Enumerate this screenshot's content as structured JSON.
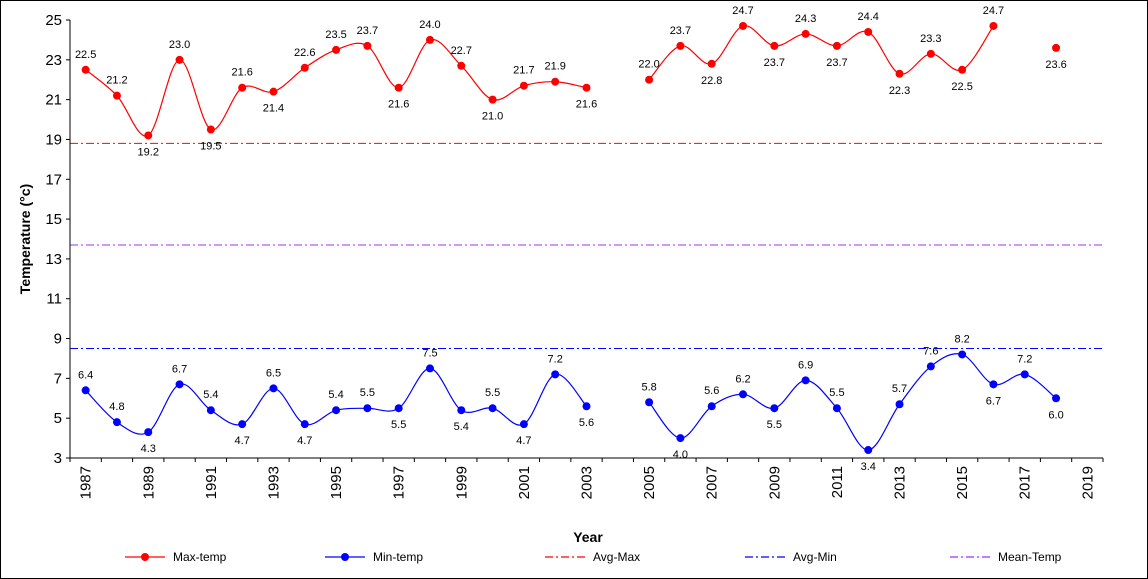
{
  "chart_data": {
    "type": "line",
    "xlabel": "Year",
    "ylabel": "Temperature (°c)",
    "ylim": [
      3,
      25
    ],
    "xlim": [
      1987,
      2020
    ],
    "y_ticks": [
      "3",
      "5",
      "7",
      "9",
      "11",
      "13",
      "15",
      "17",
      "19",
      "21",
      "23",
      "25"
    ],
    "x_ticks": [
      "1987",
      "1989",
      "1991",
      "1993",
      "1995",
      "1997",
      "1999",
      "2001",
      "2003",
      "2005",
      "2007",
      "2009",
      "2011",
      "2013",
      "2015",
      "2017",
      "2019"
    ],
    "grid": false,
    "legend_position": "bottom",
    "series": [
      {
        "name": "Max-temp",
        "color": "#ff0000",
        "marker": "circle",
        "x": [
          1987,
          1988,
          1989,
          1990,
          1991,
          1992,
          1993,
          1994,
          1995,
          1996,
          1997,
          1998,
          1999,
          2000,
          2001,
          2002,
          2003,
          2005,
          2006,
          2007,
          2008,
          2009,
          2010,
          2011,
          2012,
          2013,
          2014,
          2015,
          2016,
          2018
        ],
        "values": [
          22.5,
          21.2,
          19.2,
          23.0,
          19.5,
          21.6,
          21.4,
          22.6,
          23.5,
          23.7,
          21.6,
          24.0,
          22.7,
          21.0,
          21.7,
          21.9,
          21.6,
          22.0,
          23.7,
          22.8,
          24.7,
          23.7,
          24.3,
          23.7,
          24.4,
          22.3,
          23.3,
          22.5,
          24.7,
          23.6
        ],
        "labels": [
          "22.5",
          "21.2",
          "19.2",
          "23.0",
          "19.5",
          "21.6",
          "21.4",
          "22.6",
          "23.5",
          "23.7",
          "21.6",
          "24.0",
          "22.7",
          "21.0",
          "21.7",
          "21.9",
          "21.6",
          "22.0",
          "23.7",
          "22.8",
          "24.7",
          "23.7",
          "24.3",
          "23.7",
          "24.4",
          "22.3",
          "23.3",
          "22.5",
          "24.7",
          "23.6"
        ]
      },
      {
        "name": "Min-temp",
        "color": "#0000ff",
        "marker": "circle",
        "x": [
          1987,
          1988,
          1989,
          1990,
          1991,
          1992,
          1993,
          1994,
          1995,
          1996,
          1997,
          1998,
          1999,
          2000,
          2001,
          2002,
          2003,
          2005,
          2006,
          2007,
          2008,
          2009,
          2010,
          2011,
          2012,
          2013,
          2014,
          2015,
          2016,
          2017,
          2018
        ],
        "values": [
          6.4,
          4.8,
          4.3,
          6.7,
          5.4,
          4.7,
          6.5,
          4.7,
          5.4,
          5.5,
          5.5,
          7.5,
          5.4,
          5.5,
          4.7,
          7.2,
          5.6,
          5.8,
          4.0,
          5.6,
          6.2,
          5.5,
          6.9,
          5.5,
          3.4,
          5.7,
          7.6,
          8.2,
          6.7,
          7.2,
          6.0
        ],
        "labels": [
          "6.4",
          "4.8",
          "4.3",
          "6.7",
          "5.4",
          "4.7",
          "6.5",
          "4.7",
          "5.4",
          "5.5",
          "5.5",
          "7.5",
          "5.4",
          "5.5",
          "4.7",
          "7.2",
          "5.6",
          "5.8",
          "4.0",
          "5.6",
          "6.2",
          "5.5",
          "6.9",
          "5.5",
          "3.4",
          "5.7",
          "7.6",
          "8.2",
          "6.7",
          "7.2",
          "6.0"
        ]
      }
    ],
    "reference_lines": [
      {
        "name": "Avg-Max",
        "value": 18.8,
        "color": "#ff0000",
        "style": "dash-dot"
      },
      {
        "name": "Avg-Min",
        "value": 8.5,
        "color": "#0000ff",
        "style": "dash-dot"
      },
      {
        "name": "Mean-Temp",
        "value": 13.7,
        "color": "#9933ff",
        "style": "dash-dot"
      }
    ]
  }
}
